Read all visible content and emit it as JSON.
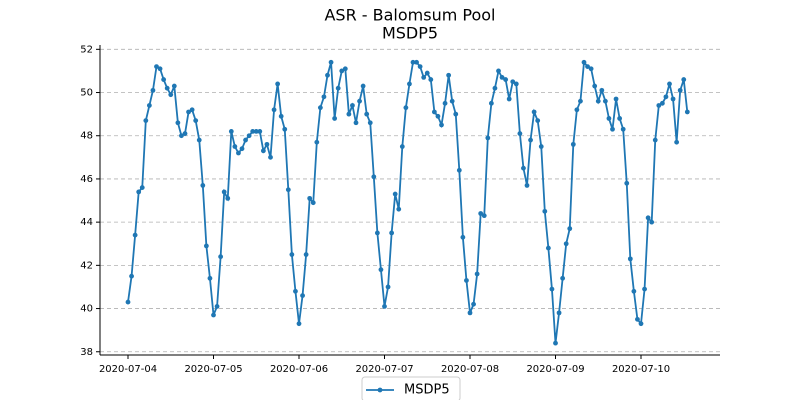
{
  "chart_data": {
    "type": "line",
    "title": "ASR - Balomsum Pool",
    "subtitle": "MSDP5",
    "categories": [
      "2020-07-04",
      null,
      null,
      null,
      null,
      null,
      null,
      null,
      null,
      null,
      null,
      null,
      null,
      null,
      null,
      null,
      null,
      null,
      null,
      null,
      null,
      null,
      null,
      null,
      "2020-07-05",
      null,
      null,
      null,
      null,
      null,
      null,
      null,
      null,
      null,
      null,
      null,
      null,
      null,
      null,
      null,
      null,
      null,
      null,
      null,
      null,
      null,
      null,
      null,
      "2020-07-06",
      null,
      null,
      null,
      null,
      null,
      null,
      null,
      null,
      null,
      null,
      null,
      null,
      null,
      null,
      null,
      null,
      null,
      null,
      null,
      null,
      null,
      null,
      null,
      "2020-07-07",
      null,
      null,
      null,
      null,
      null,
      null,
      null,
      null,
      null,
      null,
      null,
      null,
      null,
      null,
      null,
      null,
      null,
      null,
      null,
      null,
      null,
      null,
      null,
      "2020-07-08",
      null,
      null,
      null,
      null,
      null,
      null,
      null,
      null,
      null,
      null,
      null,
      null,
      null,
      null,
      null,
      null,
      null,
      null,
      null,
      null,
      null,
      null,
      null,
      "2020-07-09",
      null,
      null,
      null,
      null,
      null,
      null,
      null,
      null,
      null,
      null,
      null,
      null,
      null,
      null,
      null,
      null,
      null,
      null,
      null,
      null,
      null,
      null,
      null,
      "2020-07-10",
      null,
      null,
      null,
      null,
      null,
      null,
      null,
      null,
      null,
      null,
      null,
      null,
      null
    ],
    "series": [
      {
        "name": "MSDP5",
        "color": "#1f77b4",
        "values": [
          40.3,
          41.5,
          43.4,
          45.4,
          45.6,
          48.7,
          49.4,
          50.1,
          51.2,
          51.1,
          50.6,
          50.2,
          49.9,
          50.3,
          48.6,
          48.0,
          48.1,
          49.1,
          49.2,
          48.7,
          47.8,
          45.7,
          42.9,
          41.4,
          39.7,
          40.1,
          42.4,
          45.4,
          45.1,
          48.2,
          47.5,
          47.2,
          47.4,
          47.8,
          48.0,
          48.2,
          48.2,
          48.2,
          47.3,
          47.6,
          47.0,
          49.2,
          50.4,
          48.9,
          48.3,
          45.5,
          42.5,
          40.8,
          39.3,
          40.6,
          42.5,
          45.1,
          44.9,
          47.7,
          49.3,
          49.8,
          50.8,
          51.4,
          48.8,
          50.2,
          51.0,
          51.1,
          49.0,
          49.4,
          48.6,
          49.6,
          50.3,
          49.0,
          48.6,
          46.1,
          43.5,
          41.8,
          40.1,
          41.0,
          43.5,
          45.3,
          44.6,
          47.5,
          49.3,
          50.4,
          51.4,
          51.4,
          51.2,
          50.7,
          50.9,
          50.6,
          49.1,
          48.9,
          48.5,
          49.5,
          50.8,
          49.6,
          49.0,
          46.4,
          43.3,
          41.3,
          39.8,
          40.2,
          41.6,
          44.4,
          44.3,
          47.9,
          49.5,
          50.2,
          51.0,
          50.7,
          50.6,
          49.7,
          50.5,
          50.4,
          48.1,
          46.5,
          45.7,
          47.8,
          49.1,
          48.7,
          47.5,
          44.5,
          42.8,
          40.9,
          38.4,
          39.8,
          41.4,
          43.0,
          43.7,
          47.6,
          49.2,
          49.6,
          51.4,
          51.2,
          51.1,
          50.3,
          49.6,
          50.1,
          49.6,
          48.8,
          48.3,
          49.7,
          48.8,
          48.3,
          45.8,
          42.3,
          40.8,
          39.5,
          39.3,
          40.9,
          44.2,
          44.0,
          47.8,
          49.4,
          49.5,
          49.8,
          50.4,
          49.7,
          47.7,
          50.1,
          50.6,
          49.1
        ]
      }
    ],
    "ylim": [
      37.85,
      52.2
    ],
    "yticks": [
      38,
      40,
      42,
      44,
      46,
      48,
      50,
      52
    ],
    "grid": true
  }
}
